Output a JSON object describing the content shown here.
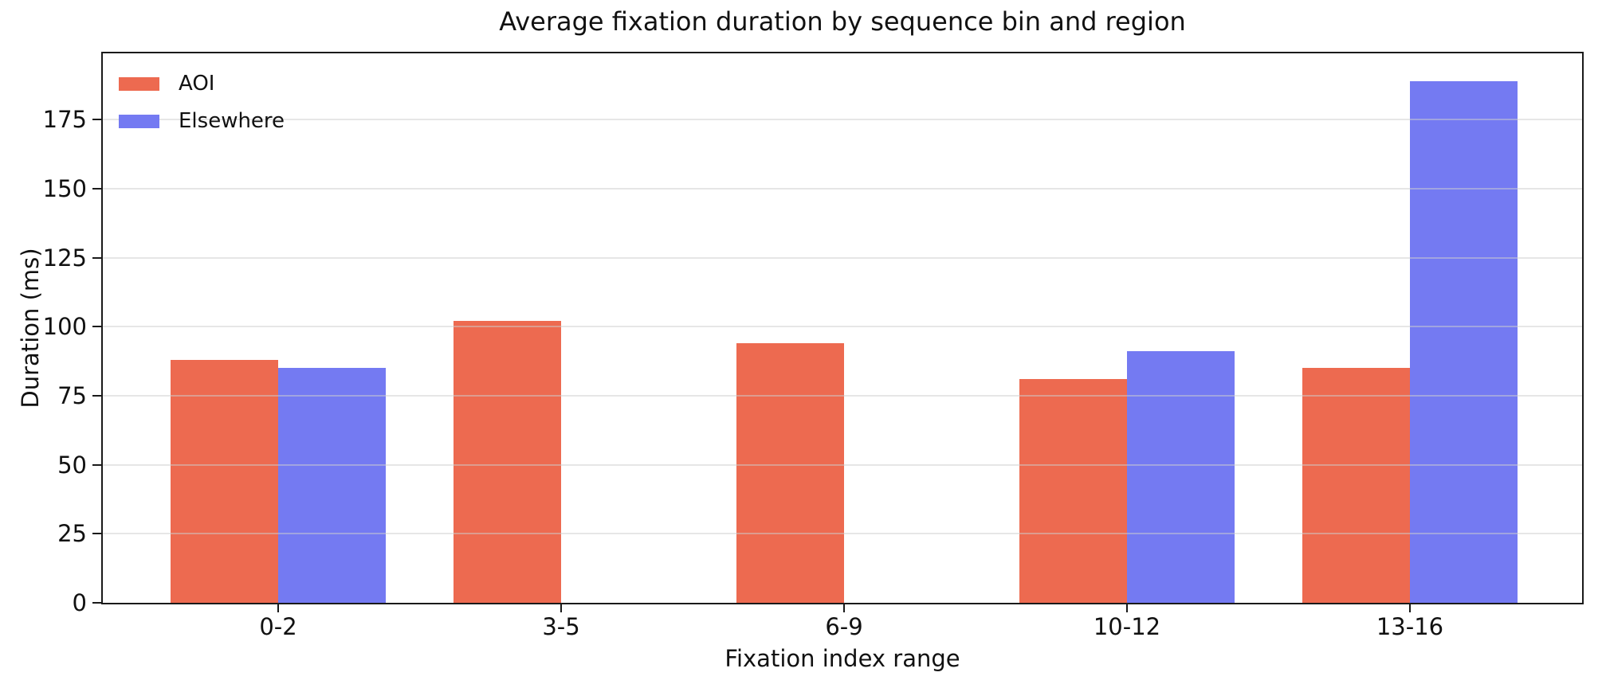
{
  "chart_data": {
    "type": "bar",
    "title": "Average fixation duration by sequence bin and region",
    "xlabel": "Fixation index range",
    "ylabel": "Duration (ms)",
    "categories": [
      "0-2",
      "3-5",
      "6-9",
      "10-12",
      "13-16"
    ],
    "series": [
      {
        "name": "AOI",
        "color": "#ED6A50",
        "values": [
          88,
          102,
          94,
          81,
          85
        ]
      },
      {
        "name": "Elsewhere",
        "color": "#747AF2",
        "values": [
          85,
          null,
          null,
          91,
          189
        ]
      }
    ],
    "ylim": [
      0,
      199
    ],
    "yticks": [
      0,
      25,
      50,
      75,
      100,
      125,
      150,
      175
    ],
    "grid": "horizontal",
    "legend_position": "upper-left",
    "colors": {
      "axis": "#1a1a1a",
      "gridline": "#e8e8e8",
      "text": "#111111",
      "background": "#ffffff"
    }
  }
}
